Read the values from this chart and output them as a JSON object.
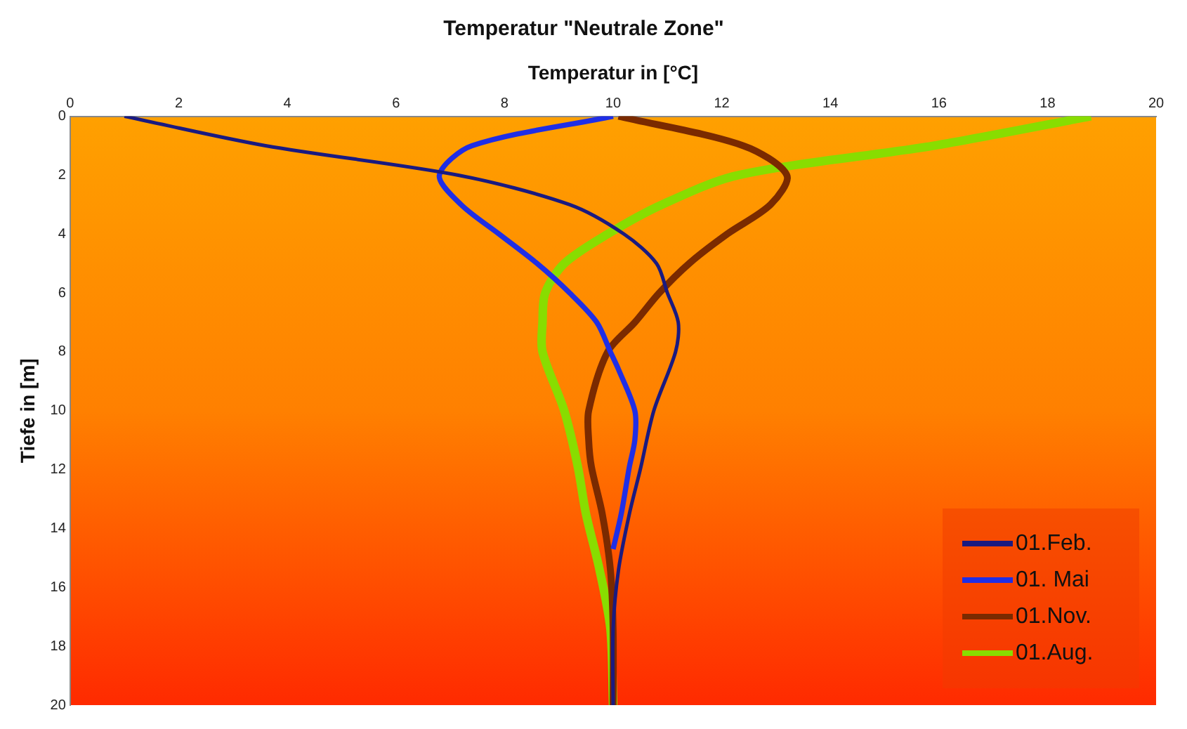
{
  "chart_data": {
    "type": "line",
    "title": "Temperatur \"Neutrale Zone\"",
    "xlabel": "Temperatur in [°C]",
    "ylabel": "Tiefe in [m]",
    "xlim": [
      0,
      20
    ],
    "xticks": [
      0,
      2,
      4,
      6,
      8,
      10,
      12,
      14,
      16,
      18,
      20
    ],
    "ylim": [
      20,
      0
    ],
    "yticks": [
      0,
      2,
      4,
      6,
      8,
      10,
      12,
      14,
      16,
      18,
      20
    ],
    "legend": "bottom right",
    "series": [
      {
        "name": "01.Feb.",
        "color": "#1a1a80",
        "x": [
          1.0,
          3.6,
          7.15,
          9.2,
          10.2,
          10.8,
          11.0,
          11.2,
          11.15,
          10.75,
          10.5,
          10.3,
          10.1,
          10.0,
          10.0
        ],
        "values": [
          0,
          1,
          2,
          3,
          4,
          5,
          6,
          7,
          8,
          10,
          12,
          13.5,
          15.4,
          17.4,
          20
        ]
      },
      {
        "name": "01. Mai",
        "color": "#1f2ee6",
        "x": [
          10.0,
          7.4,
          6.8,
          7.2,
          7.9,
          8.6,
          9.2,
          9.7,
          9.95,
          10.1,
          10.4,
          10.4,
          10.3,
          10.15,
          10.0
        ],
        "values": [
          0,
          1,
          2,
          3,
          4,
          5,
          6,
          7,
          8,
          8.6,
          10,
          11,
          11.9,
          13.5,
          14.7
        ]
      },
      {
        "name": "01.Nov.",
        "color": "#7a2a00",
        "x": [
          10.1,
          12.4,
          13.2,
          12.9,
          12.1,
          11.4,
          10.85,
          10.4,
          9.9,
          9.55,
          9.55,
          9.6,
          9.8,
          9.95,
          10.0,
          10.0
        ],
        "values": [
          0,
          1,
          2,
          3,
          4,
          5,
          6,
          7,
          8,
          10,
          11,
          11.9,
          13.5,
          15.4,
          17.4,
          20
        ]
      },
      {
        "name": "01.Aug.",
        "color": "#88dd00",
        "x": [
          18.8,
          15.9,
          12.3,
          10.9,
          9.9,
          9.1,
          8.75,
          8.7,
          8.7,
          9.1,
          9.35,
          9.5,
          9.75,
          9.95,
          10.0
        ],
        "values": [
          0,
          1,
          2,
          3,
          4,
          5,
          6,
          7,
          8,
          10,
          11.9,
          13.5,
          15.4,
          17.4,
          20
        ]
      }
    ]
  }
}
